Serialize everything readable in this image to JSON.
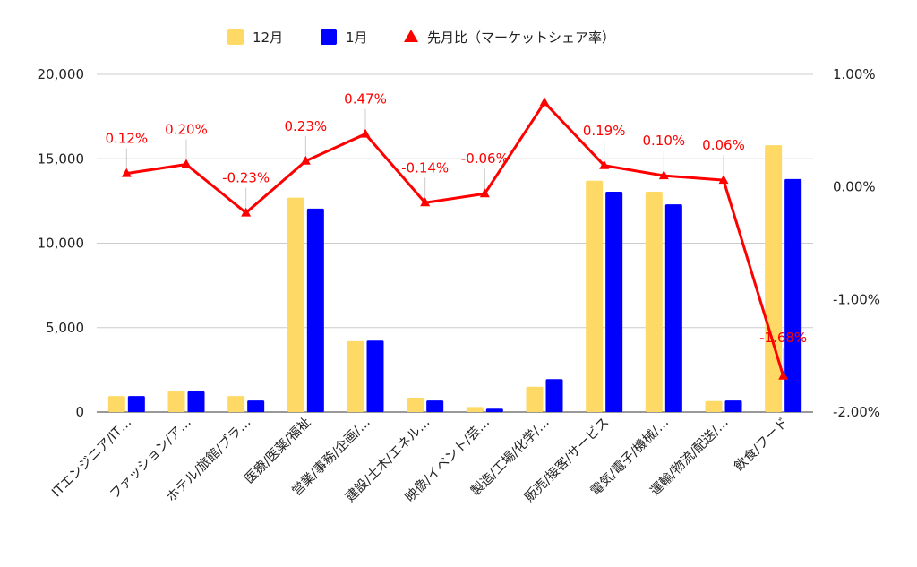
{
  "chart_data": {
    "type": "bar",
    "title": "",
    "xlabel": "",
    "ylabel": "",
    "ylabel_right": "",
    "categories": [
      "ITエンジニア/IT…",
      "ファッション/ア…",
      "ホテル/旅館/ブラ…",
      "医療/医薬/福祉",
      "営業/事務/企画/…",
      "建設/土木/エネル…",
      "映像/イベント/芸…",
      "製造/工場/化学/…",
      "販売/接客/サービス",
      "電気/電子/機械/…",
      "運輸/物流/配送/…",
      "飲食/フード"
    ],
    "series": [
      {
        "name": "12月",
        "color": "#ffd966",
        "axis": "left",
        "values": [
          950,
          1250,
          950,
          12700,
          4200,
          850,
          300,
          1500,
          13700,
          13050,
          650,
          15800
        ]
      },
      {
        "name": "1月",
        "color": "#0000ff",
        "axis": "left",
        "values": [
          950,
          1230,
          680,
          12050,
          4230,
          680,
          200,
          1950,
          13050,
          12300,
          680,
          13800
        ]
      },
      {
        "name": "先月比（マーケットシェア率）",
        "color": "#ff0000",
        "type": "line",
        "marker": "triangle",
        "axis": "right",
        "values": [
          0.12,
          0.2,
          -0.23,
          0.23,
          0.47,
          -0.14,
          -0.06,
          0.75,
          0.19,
          0.1,
          0.06,
          -1.68
        ],
        "labels": [
          "0.12%",
          "0.20%",
          "-0.23%",
          "0.23%",
          "0.47%",
          "-0.14%",
          "-0.06%",
          "",
          "0.19%",
          "0.10%",
          "0.06%",
          "-1.68%"
        ]
      }
    ],
    "ylim": [
      0,
      20000
    ],
    "yticks": [
      "0",
      "5,000",
      "10,000",
      "15,000",
      "20,000"
    ],
    "ytick_values": [
      0,
      5000,
      10000,
      15000,
      20000
    ],
    "ylim_right": [
      -2.0,
      1.0
    ],
    "yticks_right": [
      "-2.00%",
      "-1.00%",
      "0.00%",
      "1.00%"
    ],
    "ytick_values_right": [
      -2.0,
      -1.0,
      0.0,
      1.0
    ],
    "grid": true,
    "legend": "top-center"
  }
}
